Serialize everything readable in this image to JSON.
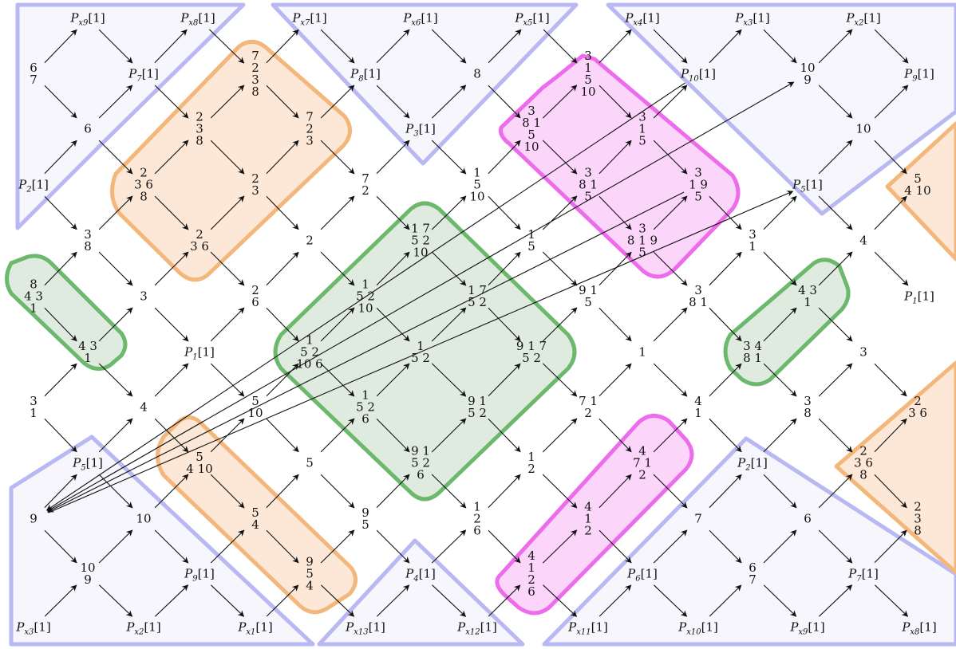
{
  "nodes": {
    "n_px9": "P_x9[1]",
    "n_px8": "P_x8[1]",
    "n_px7": "P_x7[1]",
    "n_px6": "P_x6[1]",
    "n_px5": "P_x5[1]",
    "n_px4": "P_x4[1]",
    "n_px3": "P_x3[1]",
    "n_px2": "P_x2[1]",
    "n_67a": "6|7",
    "n_p7a": "P_7[1]",
    "n_7238": "7|2|3|8",
    "n_p8": "P_8[1]",
    "n_8": "8",
    "n_31510": "3|1|5|10",
    "n_p10a": "P_10[1]",
    "n_109a": "10|9",
    "n_p9": "P_9[1]",
    "n_6": "6",
    "n_238a": "2|3|8",
    "n_723": "7|2|3",
    "n_p3": "P_3[1]",
    "n_831510": "3|8 1|5|10",
    "n_315": "3|1|5",
    "n_9": "9",
    "n_10": "10",
    "n_p2a": "P_2[1]",
    "n_2368a": "2|3 6|8",
    "n_23": "2|3",
    "n_72": "7|2",
    "n_1510": "1|5|10",
    "n_3815": "3|8 1|5",
    "n_3195": "3|1 9|5",
    "n_p5a": "P_5[1]",
    "n_5410a": "5|4 10",
    "n_38": "3|8",
    "n_236": "2|3 6",
    "n_2": "2",
    "n_175210": "1 7|5 2|10",
    "n_15": "1|5",
    "n_38195": "3|8 1 9|5",
    "n_31": "3|1",
    "n_4": "4",
    "n_8431": "8|4 3|1",
    "n_3": "3",
    "n_26": "2|6",
    "n_15210": "1|5 2|10",
    "n_1752": "1 7|5 2",
    "n_915": "9 1|5",
    "n_381": "3|8 1",
    "n_43r": "4 3|1",
    "n_p1r": "P_1[1]",
    "n_43l": "4 3|1",
    "n_p1l": "P_1[1]",
    "n_152106": "1|5 2|10 6",
    "n_152": "1|5 2",
    "n_91752": "9 1 7|5 2",
    "n_1c": "1",
    "n_3481": "3 4|8 1",
    "n_3r": "3",
    "n_31l": "3|1",
    "n_4l": "4",
    "n_510": "5|10",
    "n_1526": "1|5 2|6",
    "n_9152": "9 1|5 2",
    "n_712": "7 1|2",
    "n_41": "4|1",
    "n_38r": "3|8",
    "n_236r": "2|3 6",
    "n_p5b": "P_5[1]",
    "n_5410b": "5|4 10",
    "n_5": "5",
    "n_91526": "9 1|5 2|6",
    "n_12": "1|2",
    "n_4712": "4|7 1|2",
    "n_p2b": "P_2[1]",
    "n_2368b": "2|3 6|8",
    "n_10b": "10",
    "n_54": "5|4",
    "n_95": "9|5",
    "n_126": "1|2|6",
    "n_412": "4|1|2",
    "n_7": "7",
    "n_6b": "6",
    "n_238b": "2|3|8",
    "n_109b": "10|9",
    "n_p9b": "P_9[1]",
    "n_954": "9|5|4",
    "n_p4": "P_4[1]",
    "n_4126": "4|1|2|6",
    "n_p6": "P_6[1]",
    "n_67b": "6|7",
    "n_p7b": "P_7[1]",
    "n_px3b": "P_x3[1]",
    "n_px2b": "P_x2[1]",
    "n_px1": "P_x1[1]",
    "n_px13": "P_x13[1]",
    "n_px12": "P_x12[1]",
    "n_px11": "P_x11[1]",
    "n_px10": "P_x10[1]",
    "n_px9b": "P_x9[1]",
    "n_px8b": "P_x8[1]"
  },
  "colors": {
    "orange_fill": "#fde7d6",
    "orange_stroke": "#f3b77c",
    "green_fill": "#e0ebe0",
    "green_stroke": "#6cb86c",
    "magenta_fill": "#fcd5fa",
    "magenta_stroke": "#ec6cec",
    "blue_fill": "#f6f6fc",
    "blue_stroke": "#b8b8f2",
    "arrow": "#111111"
  }
}
